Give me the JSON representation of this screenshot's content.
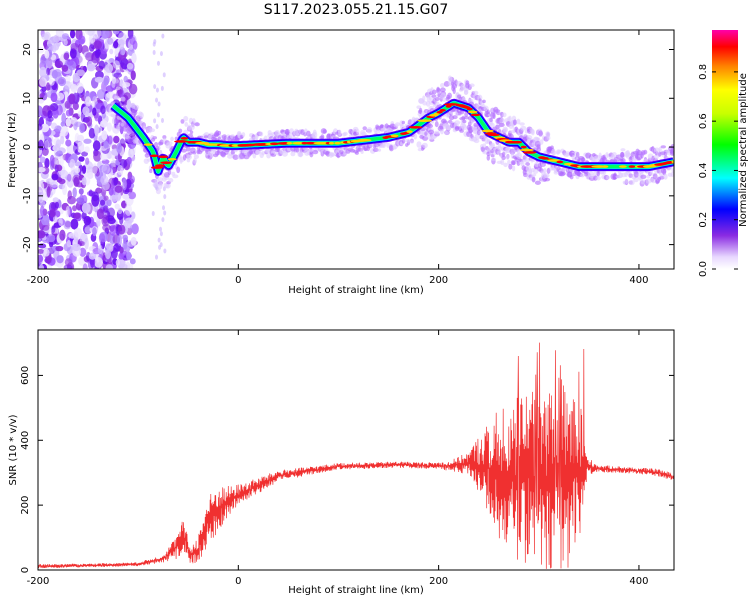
{
  "title": "S117.2023.055.21.15.G07",
  "colors": {
    "snr_line": "#f03030",
    "ridge": "#ff0000",
    "noise": "#7a2df0"
  },
  "chart_data": [
    {
      "type": "heatmap",
      "xlabel": "Height of straight line (km)",
      "ylabel": "Frequency (Hz)",
      "xlim": [
        -200,
        435
      ],
      "ylim": [
        -25,
        24
      ],
      "x_ticks": [
        "-200",
        "0",
        "200",
        "400"
      ],
      "x_tick_values": [
        -200,
        0,
        200,
        400
      ],
      "y_ticks": [
        "20",
        "10",
        "0",
        "-10",
        "-20"
      ],
      "y_tick_values": [
        20,
        10,
        0,
        -10,
        -20
      ],
      "colorbar": {
        "label": "Normalized spectral amplitude",
        "ticks": [
          "0.0",
          "0.2",
          "0.4",
          "0.6",
          "0.8"
        ],
        "tick_values": [
          0.0,
          0.2,
          0.4,
          0.6,
          0.8
        ],
        "range": [
          0,
          0.97
        ]
      },
      "ridge": {
        "x": [
          -128,
          -110,
          -95,
          -85,
          -80,
          -75,
          -70,
          -62,
          -55,
          -50,
          -40,
          -30,
          -20,
          -10,
          0,
          50,
          100,
          130,
          150,
          170,
          190,
          200,
          215,
          230,
          240,
          250,
          260,
          270,
          280,
          290,
          300,
          310,
          320,
          340,
          380,
          410,
          435
        ],
        "y": [
          9,
          6,
          2,
          -1,
          -5,
          -2,
          -4,
          -1,
          2,
          1,
          1,
          0.5,
          0.5,
          0.3,
          0.3,
          0.8,
          0.8,
          1.5,
          2,
          3,
          6,
          7,
          9,
          8,
          6,
          3,
          2,
          1,
          1,
          -1,
          -2,
          -2.5,
          -3,
          -4,
          -4,
          -4,
          -3
        ]
      },
      "noise_region_x": [
        -200,
        -103
      ]
    },
    {
      "type": "line",
      "xlabel": "Height of straight line (km)",
      "ylabel": "SNR (10 * v/v)",
      "xlim": [
        -200,
        435
      ],
      "ylim": [
        0,
        740
      ],
      "x_ticks": [
        "-200",
        "0",
        "200",
        "400"
      ],
      "x_tick_values": [
        -200,
        0,
        200,
        400
      ],
      "y_ticks": [
        "0",
        "200",
        "400",
        "600"
      ],
      "y_tick_values": [
        0,
        200,
        400,
        600
      ],
      "series": [
        {
          "x": [
            -200,
            -150,
            -100,
            -75,
            -60,
            -55,
            -48,
            -40,
            -30,
            -20,
            -10,
            0,
            20,
            40,
            60,
            80,
            100,
            130,
            160,
            190,
            210,
            230,
            245,
            260,
            280,
            300,
            320,
            340,
            348,
            360,
            380,
            400,
            420,
            435
          ],
          "y": [
            12,
            14,
            18,
            35,
            75,
            110,
            45,
            65,
            150,
            190,
            210,
            230,
            260,
            290,
            300,
            310,
            320,
            322,
            325,
            322,
            320,
            330,
            320,
            300,
            280,
            290,
            270,
            300,
            320,
            312,
            310,
            305,
            300,
            285
          ],
          "spread": [
            6,
            6,
            6,
            12,
            40,
            50,
            25,
            45,
            80,
            70,
            50,
            35,
            25,
            18,
            15,
            12,
            10,
            10,
            10,
            10,
            15,
            35,
            120,
            200,
            260,
            280,
            300,
            280,
            30,
            12,
            10,
            10,
            12,
            12
          ]
        }
      ]
    }
  ]
}
